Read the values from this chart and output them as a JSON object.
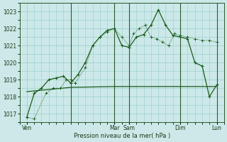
{
  "bg_color": "#cce8e8",
  "grid_color": "#99cccc",
  "line_color": "#1a5c1a",
  "xlabel": "Pression niveau de la mer( hPa )",
  "ylim": [
    1016.5,
    1023.5
  ],
  "yticks": [
    1017,
    1018,
    1019,
    1020,
    1021,
    1022,
    1023
  ],
  "xlim": [
    0,
    14
  ],
  "xtick_pos": [
    0.5,
    6.5,
    7.5,
    11.0,
    13.5
  ],
  "xtick_labels": [
    "Ven",
    "Mar",
    "Sam",
    "Dim",
    "Lun"
  ],
  "vline_positions": [
    3.5,
    6.5,
    7.5,
    11.0,
    13.5
  ],
  "series_dotted_x": [
    0.5,
    1.0,
    1.8,
    2.3,
    2.8,
    3.2,
    3.5,
    3.8,
    4.5,
    5.0,
    5.5,
    6.0,
    6.5,
    7.0,
    7.5,
    7.8,
    8.2,
    8.6,
    9.0,
    9.4,
    9.8,
    10.2,
    10.6,
    11.0,
    11.5,
    12.0,
    12.5,
    13.0,
    13.5
  ],
  "series_dotted_y": [
    1016.8,
    1016.7,
    1018.2,
    1018.5,
    1018.5,
    1019.0,
    1019.0,
    1018.8,
    1019.7,
    1021.0,
    1021.5,
    1021.8,
    1022.0,
    1021.5,
    1021.0,
    1021.7,
    1022.0,
    1022.2,
    1021.5,
    1021.4,
    1021.2,
    1021.0,
    1021.7,
    1021.6,
    1021.5,
    1021.4,
    1021.3,
    1021.3,
    1021.2
  ],
  "series_flat_x": [
    0.5,
    3.5,
    6.5,
    7.5,
    11.0,
    13.5
  ],
  "series_flat_y": [
    1018.3,
    1018.55,
    1018.6,
    1018.6,
    1018.6,
    1018.6
  ],
  "series_markers_x": [
    0.5,
    1.0,
    1.5,
    2.0,
    2.5,
    3.0,
    3.5,
    4.0,
    4.5,
    5.0,
    5.5,
    6.0,
    6.5,
    7.0,
    7.5,
    8.0,
    8.5,
    9.0,
    9.5,
    10.0,
    10.5,
    11.0,
    11.5,
    12.0,
    12.5,
    13.0,
    13.5
  ],
  "series_markers_y": [
    1016.8,
    1018.2,
    1018.5,
    1019.0,
    1019.1,
    1019.2,
    1018.8,
    1019.3,
    1020.0,
    1021.0,
    1021.5,
    1021.9,
    1022.0,
    1021.0,
    1020.9,
    1021.5,
    1021.65,
    1022.2,
    1023.1,
    1022.2,
    1021.6,
    1021.5,
    1021.4,
    1020.0,
    1019.8,
    1018.0,
    1018.7
  ]
}
